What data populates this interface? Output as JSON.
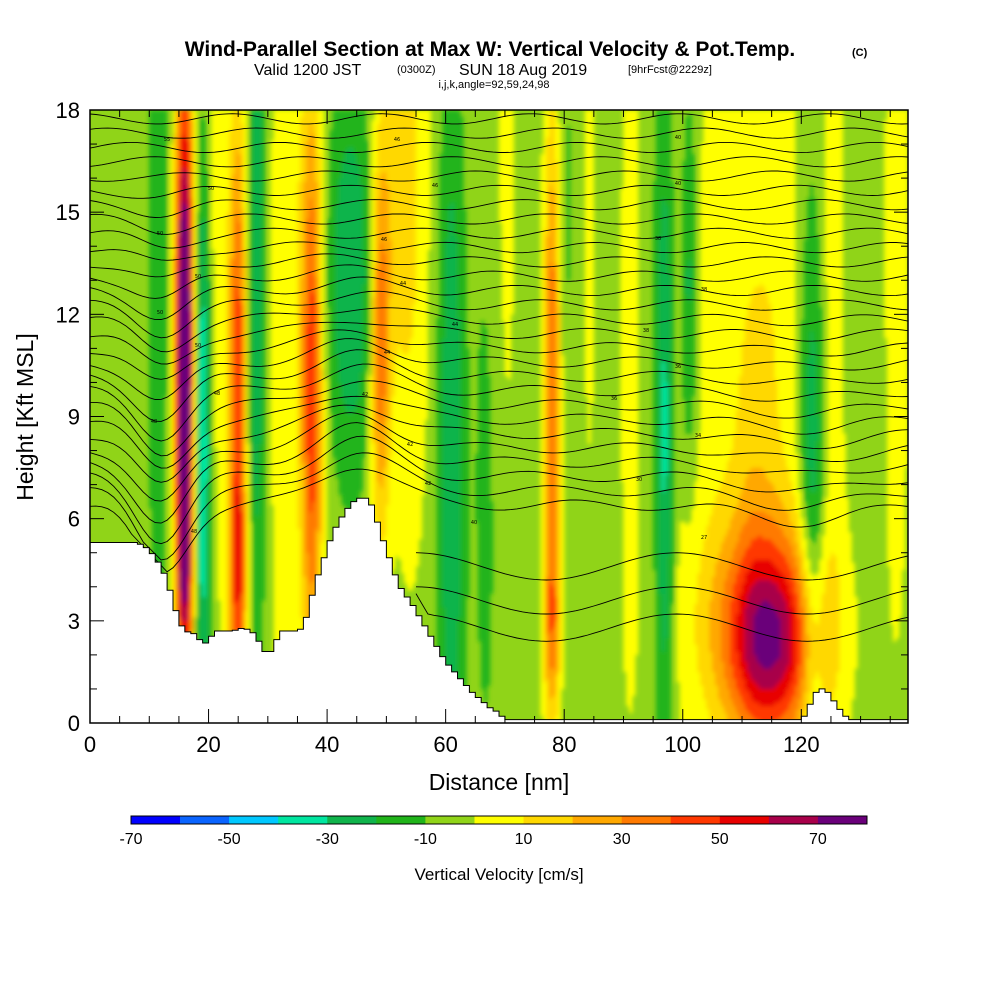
{
  "title": {
    "main": "Wind-Parallel Section at Max W: Vertical Velocity & Pot.Temp.",
    "copyright": "(C)",
    "valid_prefix": "Valid 1200 JST",
    "valid_utc": "(0300Z)",
    "valid_date": "SUN 18 Aug 2019",
    "forecast": "[9hrFcst@2229z]",
    "indices": "i,j,k,angle=92,59,24,98"
  },
  "chart_data": {
    "type": "heatmap",
    "xlabel": "Distance [nm]",
    "ylabel": "Height [Kft MSL]",
    "xlim": [
      0,
      138
    ],
    "ylim": [
      0,
      18
    ],
    "x_ticks": [
      0,
      20,
      40,
      60,
      80,
      100,
      120
    ],
    "y_ticks": [
      0,
      3,
      6,
      9,
      12,
      15,
      18
    ],
    "x_ticks_labels": [
      "0",
      "20",
      "40",
      "60",
      "80",
      "100",
      "120"
    ],
    "y_ticks_labels": [
      "0",
      "3",
      "6",
      "9",
      "12",
      "15",
      "18"
    ],
    "shaded_field": "Vertical Velocity [cm/s]",
    "contour_field": "Potential temperature",
    "terrain_top_kft": [
      [
        0,
        5.3
      ],
      [
        4,
        5.3
      ],
      [
        8,
        5.3
      ],
      [
        10,
        5.1
      ],
      [
        12,
        4.6
      ],
      [
        13,
        4.2
      ],
      [
        14,
        3.6
      ],
      [
        15,
        3.0
      ],
      [
        16,
        2.7
      ],
      [
        18,
        2.6
      ],
      [
        19,
        2.3
      ],
      [
        20,
        2.4
      ],
      [
        21,
        2.7
      ],
      [
        24,
        2.7
      ],
      [
        26,
        2.8
      ],
      [
        28,
        2.6
      ],
      [
        29,
        2.2
      ],
      [
        30,
        2.0
      ],
      [
        31,
        2.2
      ],
      [
        32,
        2.7
      ],
      [
        35,
        2.7
      ],
      [
        36,
        2.8
      ],
      [
        37,
        3.4
      ],
      [
        38,
        4.1
      ],
      [
        39,
        4.6
      ],
      [
        40,
        5.1
      ],
      [
        41,
        5.6
      ],
      [
        42,
        5.9
      ],
      [
        43,
        6.2
      ],
      [
        44,
        6.4
      ],
      [
        45,
        6.6
      ],
      [
        47,
        6.6
      ],
      [
        48,
        6.2
      ],
      [
        49,
        5.6
      ],
      [
        50,
        5.1
      ],
      [
        51,
        4.6
      ],
      [
        52,
        4.1
      ],
      [
        53,
        3.8
      ],
      [
        54,
        3.6
      ],
      [
        55,
        3.3
      ],
      [
        56,
        3.0
      ],
      [
        57,
        2.7
      ],
      [
        58,
        2.4
      ],
      [
        59,
        2.1
      ],
      [
        60,
        1.8
      ],
      [
        61,
        1.6
      ],
      [
        62,
        1.4
      ],
      [
        63,
        1.2
      ],
      [
        64,
        1.0
      ],
      [
        65,
        0.8
      ],
      [
        66,
        0.7
      ],
      [
        67,
        0.5
      ],
      [
        68,
        0.4
      ],
      [
        69,
        0.3
      ],
      [
        70,
        0.1
      ],
      [
        100,
        0.1
      ],
      [
        120,
        0.1
      ],
      [
        121,
        0.3
      ],
      [
        122,
        0.8
      ],
      [
        123,
        1.0
      ],
      [
        124,
        1.0
      ],
      [
        125,
        0.8
      ],
      [
        126,
        0.5
      ],
      [
        127,
        0.3
      ],
      [
        128,
        0.1
      ],
      [
        138,
        0.1
      ]
    ],
    "theta_contour_labels": [
      "55",
      "50",
      "50",
      "50",
      "50",
      "50",
      "48",
      "48",
      "48",
      "46",
      "46",
      "46",
      "44",
      "44",
      "44",
      "42",
      "42",
      "42",
      "40",
      "40",
      "40",
      "38",
      "38",
      "38",
      "36",
      "36",
      "34",
      "30",
      "27"
    ],
    "colorbar": {
      "label": "Vertical Velocity [cm/s]",
      "bounds": [
        -70,
        -60,
        -50,
        -40,
        -30,
        -20,
        -10,
        0,
        10,
        20,
        30,
        40,
        50,
        60,
        70,
        80
      ],
      "tick_labels": [
        "-70",
        "-50",
        "-30",
        "-10",
        "10",
        "30",
        "50",
        "70"
      ],
      "colors": [
        "#0000ff",
        "#0a64ff",
        "#00c8ff",
        "#00e6a0",
        "#10b44c",
        "#20b41a",
        "#90d418",
        "#ffff00",
        "#ffd800",
        "#ffa800",
        "#ff7a00",
        "#ff3800",
        "#e80000",
        "#a8004a",
        "#6a007a"
      ]
    }
  }
}
